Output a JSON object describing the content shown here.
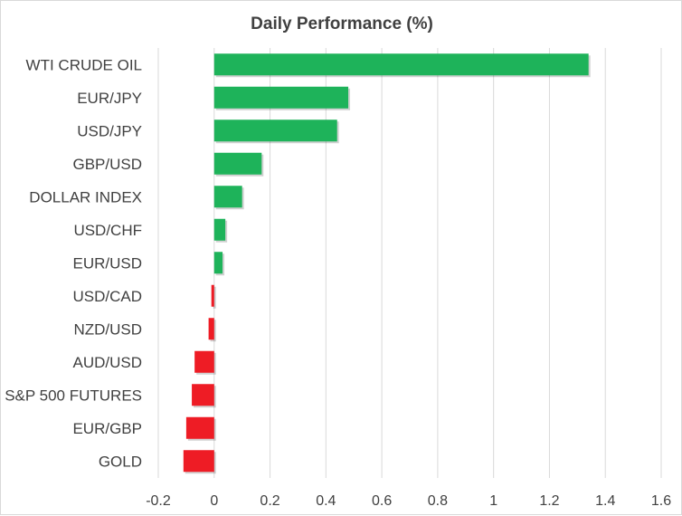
{
  "chart_data": {
    "type": "bar",
    "orientation": "horizontal",
    "title": "Daily Performance (%)",
    "categories": [
      "WTI CRUDE OIL",
      "EUR/JPY",
      "USD/JPY",
      "GBP/USD",
      "DOLLAR INDEX",
      "USD/CHF",
      "EUR/USD",
      "USD/CAD",
      "NZD/USD",
      "AUD/USD",
      "S&P 500 FUTURES",
      "EUR/GBP",
      "GOLD"
    ],
    "values": [
      1.34,
      0.48,
      0.44,
      0.17,
      0.1,
      0.04,
      0.03,
      -0.01,
      -0.02,
      -0.07,
      -0.08,
      -0.1,
      -0.11
    ],
    "xlabel": "",
    "ylabel": "",
    "xlim": [
      -0.2,
      1.6
    ],
    "xticks": [
      -0.2,
      0,
      0.2,
      0.4,
      0.6,
      0.8,
      1,
      1.2,
      1.4,
      1.6
    ],
    "xtick_labels": [
      "-0.2",
      "0",
      "0.2",
      "0.4",
      "0.6",
      "0.8",
      "1",
      "1.2",
      "1.4",
      "1.6"
    ],
    "grid": "vertical",
    "legend": "none",
    "colors": {
      "positive": "#1eb35a",
      "negative": "#ee1c25",
      "grid": "#d9d9d9",
      "text": "#404040"
    }
  }
}
